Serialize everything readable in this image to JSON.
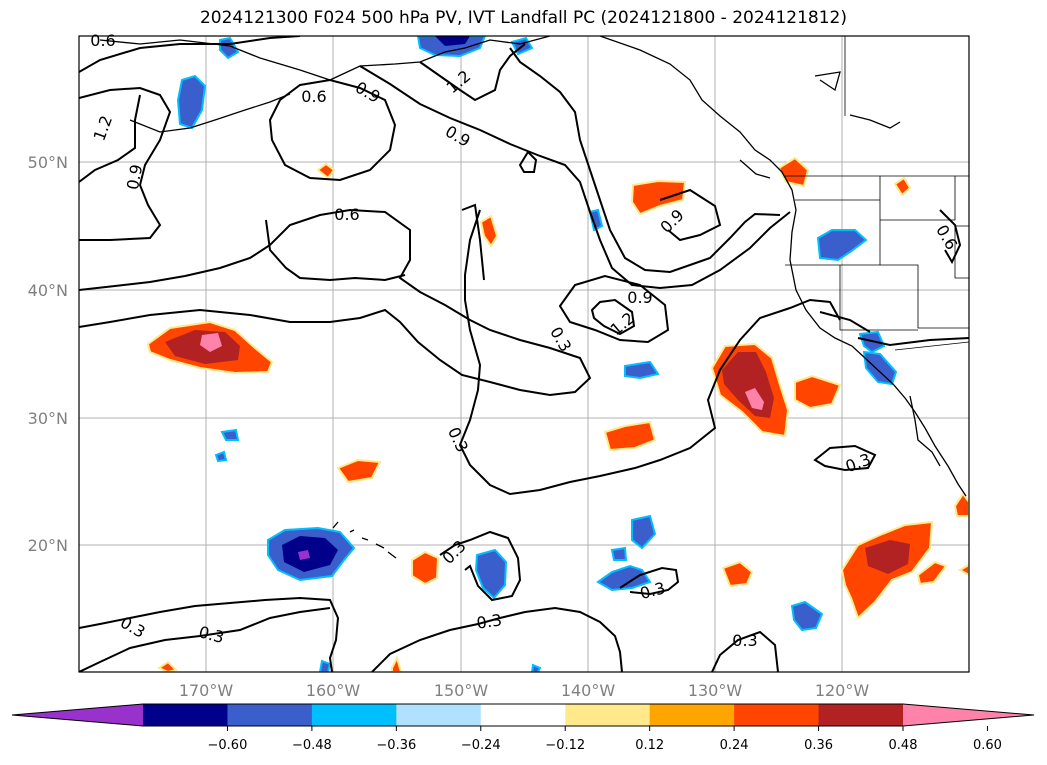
{
  "title": "2024121300 F024 500 hPa PV, IVT Landfall PC (2024121800 - 2024121812)",
  "lat_ticks": [
    "50°N",
    "40°N",
    "30°N",
    "20°N"
  ],
  "lon_ticks": [
    "170°W",
    "160°W",
    "150°W",
    "140°W",
    "130°W",
    "120°W"
  ],
  "colorbar": {
    "ticks": [
      "−0.60",
      "−0.48",
      "−0.36",
      "−0.24",
      "−0.12",
      "0.12",
      "0.24",
      "0.36",
      "0.48",
      "0.60"
    ],
    "colors": [
      "#9932cc",
      "#00008b",
      "#3a5fcd",
      "#00bfff",
      "#b0e2ff",
      "#ffffff",
      "#ffe98a",
      "#ffa500",
      "#ff4500",
      "#b22222",
      "#ff82ab"
    ]
  },
  "contour_labels": [
    "0.6",
    "1.2",
    "0.9",
    "0.6",
    "1.2",
    "0.9",
    "0.3",
    "0.9",
    "0.6",
    "0.9",
    "1.2",
    "0.9",
    "0.3",
    "0.3",
    "0.3",
    "0.3",
    "0.3",
    "0.3",
    "0.3",
    "0.3",
    "0.6"
  ]
}
